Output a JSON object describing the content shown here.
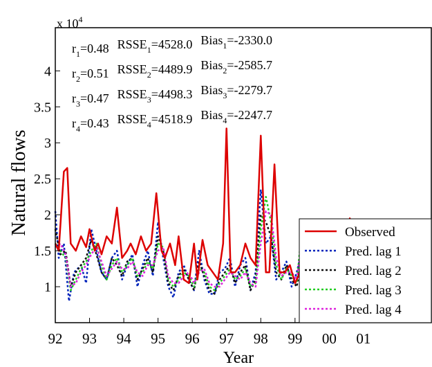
{
  "chart_data": {
    "type": "line",
    "xlabel": "Year",
    "ylabel": "Natural flows",
    "y_multiplier": {
      "base": "x 10",
      "exponent": "4"
    },
    "xlim": [
      1992,
      2003
    ],
    "ylim": [
      0.5,
      4.6
    ],
    "x_tick_values": [
      1992,
      1993,
      1994,
      1995,
      1996,
      1997,
      1998,
      1999,
      2000,
      2001
    ],
    "x_tick_labels": [
      "92",
      "93",
      "94",
      "95",
      "96",
      "97",
      "98",
      "99",
      "00",
      "01"
    ],
    "y_tick_values": [
      1,
      1.5,
      2,
      2.5,
      3,
      3.5,
      4
    ],
    "y_tick_labels": [
      "1",
      "1.5",
      "2",
      "2.5",
      "3",
      "3.5",
      "4"
    ],
    "grid": false,
    "legend_position": "bottom-right",
    "annotations": [
      {
        "r": "r",
        "rsub": "1",
        "rv": "=0.48",
        "s": "RSSE",
        "ssub": "1",
        "sv": "=4528.0",
        "b": "Bias",
        "bsub": "1",
        "bv": "=-2330.0"
      },
      {
        "r": "r",
        "rsub": "2",
        "rv": "=0.51",
        "s": "RSSE",
        "ssub": "2",
        "sv": "=4489.9",
        "b": "Bias",
        "bsub": "2",
        "bv": "=-2585.7"
      },
      {
        "r": "r",
        "rsub": "3",
        "rv": "=0.47",
        "s": "RSSE",
        "ssub": "3",
        "sv": "=4498.3",
        "b": "Bias",
        "bsub": "3",
        "bv": "=-2279.7"
      },
      {
        "r": "r",
        "rsub": "4",
        "rv": "=0.43",
        "s": "RSSE",
        "ssub": "4",
        "sv": "=4518.9",
        "b": "Bias",
        "bsub": "4",
        "bv": "=-2247.7"
      }
    ],
    "series": [
      {
        "name": "Observed",
        "color": "#dd0000",
        "dash": "solid",
        "x": [
          1992.0,
          1992.1,
          1992.25,
          1992.35,
          1992.45,
          1992.6,
          1992.75,
          1992.9,
          1993.0,
          1993.15,
          1993.25,
          1993.35,
          1993.5,
          1993.65,
          1993.8,
          1993.95,
          1994.1,
          1994.2,
          1994.35,
          1994.5,
          1994.65,
          1994.8,
          1994.95,
          1995.1,
          1995.2,
          1995.35,
          1995.5,
          1995.6,
          1995.75,
          1995.9,
          1996.05,
          1996.15,
          1996.3,
          1996.45,
          1996.6,
          1996.75,
          1996.9,
          1997.0,
          1997.12,
          1997.25,
          1997.4,
          1997.55,
          1997.7,
          1997.85,
          1998.0,
          1998.15,
          1998.25,
          1998.4,
          1998.55,
          1998.7,
          1998.85,
          1999.0,
          1999.1,
          1999.25,
          1999.4,
          1999.55,
          1999.7,
          1999.85,
          2000.0,
          2000.15,
          2000.3,
          2000.45,
          2000.6,
          2000.75,
          2000.85,
          2001.0,
          2001.1,
          2001.25,
          2001.4,
          2001.55,
          2001.7,
          2001.85
        ],
        "y": [
          1.6,
          1.5,
          2.6,
          2.65,
          1.6,
          1.5,
          1.7,
          1.55,
          1.8,
          1.5,
          1.6,
          1.45,
          1.7,
          1.6,
          2.1,
          1.4,
          1.5,
          1.6,
          1.45,
          1.7,
          1.5,
          1.6,
          2.3,
          1.5,
          1.4,
          1.6,
          1.3,
          1.7,
          1.1,
          1.05,
          1.6,
          1.1,
          1.65,
          1.3,
          1.2,
          1.1,
          1.6,
          3.2,
          1.2,
          1.2,
          1.3,
          1.6,
          1.4,
          1.3,
          3.1,
          1.2,
          1.2,
          2.7,
          1.2,
          1.2,
          1.3,
          1.05,
          1.15,
          1.4,
          1.1,
          1.0,
          1.2,
          1.1,
          1.4,
          1.8,
          1.2,
          1.1,
          1.95,
          1.4,
          1.2,
          1.3,
          1.1,
          1.3,
          1.1,
          1.0,
          1.1,
          1.2
        ]
      },
      {
        "name": "Pred. lag 1",
        "color": "#0022bb",
        "dash": "3,3",
        "x": [
          1992.0,
          1992.1,
          1992.25,
          1992.4,
          1992.55,
          1992.75,
          1992.9,
          1993.05,
          1993.2,
          1993.35,
          1993.5,
          1993.65,
          1993.8,
          1993.95,
          1994.1,
          1994.25,
          1994.4,
          1994.55,
          1994.7,
          1994.85,
          1995.0,
          1995.15,
          1995.3,
          1995.45,
          1995.6,
          1995.75,
          1995.9,
          1996.05,
          1996.2,
          1996.35,
          1996.5,
          1996.65,
          1996.8,
          1996.95,
          1997.1,
          1997.25,
          1997.4,
          1997.55,
          1997.7,
          1997.85,
          1998.0,
          1998.15,
          1998.3,
          1998.45,
          1998.6,
          1998.75,
          1998.9,
          1999.05,
          1999.2,
          1999.35,
          1999.5,
          1999.65,
          1999.8,
          1999.95,
          2000.1,
          2000.25,
          2000.4,
          2000.55,
          2000.7,
          2000.85,
          2001.0,
          2001.15,
          2001.3,
          2001.45,
          2001.6,
          2001.75,
          2001.85
        ],
        "y": [
          2.05,
          1.4,
          1.6,
          0.8,
          1.2,
          1.3,
          1.05,
          1.8,
          1.5,
          1.2,
          1.1,
          1.4,
          1.5,
          1.1,
          1.3,
          1.45,
          1.0,
          1.3,
          1.5,
          1.15,
          1.9,
          1.4,
          1.0,
          0.85,
          1.2,
          1.3,
          1.1,
          0.95,
          1.5,
          1.1,
          0.9,
          0.9,
          1.2,
          1.25,
          1.4,
          1.0,
          1.3,
          1.4,
          0.95,
          1.2,
          2.35,
          1.6,
          1.7,
          1.1,
          1.2,
          1.35,
          1.0,
          1.2,
          1.5,
          1.0,
          0.9,
          1.05,
          1.2,
          1.3,
          1.15,
          1.05,
          1.4,
          1.15,
          0.9,
          1.2,
          1.4,
          1.25,
          1.05,
          0.95,
          1.0,
          1.2,
          1.15
        ]
      },
      {
        "name": "Pred. lag 2",
        "color": "#111111",
        "dash": "3,3",
        "x": [
          1992.0,
          1992.15,
          1992.3,
          1992.45,
          1992.6,
          1992.75,
          1992.9,
          1993.05,
          1993.2,
          1993.35,
          1993.5,
          1993.65,
          1993.8,
          1993.95,
          1994.1,
          1994.25,
          1994.4,
          1994.55,
          1994.7,
          1994.85,
          1995.0,
          1995.15,
          1995.3,
          1995.45,
          1995.6,
          1995.75,
          1995.9,
          1996.05,
          1996.2,
          1996.35,
          1996.5,
          1996.65,
          1996.8,
          1996.95,
          1997.1,
          1997.25,
          1997.4,
          1997.55,
          1997.7,
          1997.85,
          1998.0,
          1998.15,
          1998.3,
          1998.45,
          1998.6,
          1998.75,
          1998.9,
          1999.05,
          1999.2,
          1999.35,
          1999.5,
          1999.65,
          1999.8,
          1999.95,
          2000.1,
          2000.25,
          2000.4,
          2000.55,
          2000.7,
          2000.85,
          2001.0,
          2001.15,
          2001.3,
          2001.45,
          2001.6,
          2001.75,
          2001.85
        ],
        "y": [
          1.8,
          1.45,
          1.5,
          1.0,
          1.2,
          1.3,
          1.4,
          1.65,
          1.45,
          1.2,
          1.1,
          1.4,
          1.3,
          1.15,
          1.35,
          1.4,
          1.1,
          1.25,
          1.4,
          1.2,
          1.7,
          1.5,
          1.05,
          0.95,
          1.15,
          1.25,
          1.1,
          0.95,
          1.35,
          1.15,
          0.95,
          0.9,
          1.1,
          1.2,
          1.3,
          1.05,
          1.2,
          1.3,
          0.95,
          1.1,
          2.0,
          1.9,
          1.7,
          1.2,
          1.1,
          1.3,
          1.1,
          1.0,
          1.4,
          1.1,
          0.85,
          0.85,
          1.1,
          1.25,
          1.1,
          1.0,
          1.35,
          1.1,
          0.9,
          1.15,
          1.35,
          1.25,
          1.1,
          0.95,
          1.05,
          1.2,
          1.15
        ]
      },
      {
        "name": "Pred. lag 3",
        "color": "#22cc22",
        "dash": "3,3",
        "x": [
          1992.0,
          1992.15,
          1992.3,
          1992.45,
          1992.6,
          1992.75,
          1992.9,
          1993.05,
          1993.2,
          1993.35,
          1993.5,
          1993.65,
          1993.8,
          1993.95,
          1994.1,
          1994.25,
          1994.4,
          1994.55,
          1994.7,
          1994.85,
          1995.0,
          1995.15,
          1995.3,
          1995.45,
          1995.6,
          1995.75,
          1995.9,
          1996.05,
          1996.2,
          1996.35,
          1996.5,
          1996.65,
          1996.8,
          1996.95,
          1997.1,
          1997.25,
          1997.4,
          1997.55,
          1997.7,
          1997.85,
          1998.0,
          1998.15,
          1998.3,
          1998.45,
          1998.6,
          1998.75,
          1998.9,
          1999.05,
          1999.2,
          1999.35,
          1999.5,
          1999.65,
          1999.8,
          1999.95,
          2000.1,
          2000.25,
          2000.4,
          2000.55,
          2000.7,
          2000.85,
          2001.0,
          2001.15,
          2001.3,
          2001.45,
          2001.6,
          2001.75,
          2001.85
        ],
        "y": [
          1.6,
          1.5,
          1.4,
          0.95,
          1.1,
          1.25,
          1.35,
          1.5,
          1.6,
          1.3,
          1.1,
          1.3,
          1.4,
          1.2,
          1.3,
          1.4,
          1.15,
          1.2,
          1.35,
          1.25,
          1.6,
          1.55,
          1.1,
          1.0,
          1.1,
          1.2,
          1.15,
          1.0,
          1.25,
          1.2,
          1.0,
          0.95,
          1.05,
          1.15,
          1.25,
          1.1,
          1.15,
          1.25,
          1.0,
          1.05,
          1.8,
          2.25,
          1.9,
          1.3,
          1.1,
          1.25,
          1.15,
          1.05,
          1.8,
          1.2,
          1.0,
          1.0,
          1.1,
          1.2,
          1.15,
          1.05,
          1.3,
          1.1,
          0.95,
          1.1,
          1.3,
          1.3,
          1.15,
          1.0,
          1.05,
          1.15,
          1.15
        ]
      },
      {
        "name": "Pred. lag 4",
        "color": "#dd22dd",
        "dash": "3,3",
        "x": [
          1992.0,
          1992.15,
          1992.3,
          1992.45,
          1992.6,
          1992.75,
          1992.9,
          1993.05,
          1993.2,
          1993.35,
          1993.5,
          1993.65,
          1993.8,
          1993.95,
          1994.1,
          1994.25,
          1994.4,
          1994.55,
          1994.7,
          1994.85,
          1995.0,
          1995.15,
          1995.3,
          1995.45,
          1995.6,
          1995.75,
          1995.9,
          1996.05,
          1996.2,
          1996.35,
          1996.5,
          1996.65,
          1996.8,
          1996.95,
          1997.1,
          1997.25,
          1997.4,
          1997.55,
          1997.7,
          1997.85,
          1998.0,
          1998.15,
          1998.3,
          1998.45,
          1998.6,
          1998.75,
          1998.9,
          1999.05,
          1999.2,
          1999.35,
          1999.5,
          1999.65,
          1999.8,
          1999.95,
          2000.1,
          2000.25,
          2000.4,
          2000.55,
          2000.7,
          2000.85,
          2001.0,
          2001.15,
          2001.3,
          2001.45,
          2001.6,
          2001.75,
          2001.85
        ],
        "y": [
          1.55,
          1.6,
          1.45,
          1.0,
          1.05,
          1.2,
          1.3,
          1.45,
          1.55,
          1.35,
          1.15,
          1.25,
          1.35,
          1.25,
          1.25,
          1.35,
          1.2,
          1.15,
          1.3,
          1.3,
          1.5,
          1.55,
          1.15,
          1.05,
          1.05,
          1.15,
          1.2,
          1.05,
          1.2,
          1.25,
          1.05,
          1.0,
          1.0,
          1.1,
          1.2,
          1.15,
          1.1,
          1.2,
          1.05,
          1.0,
          1.6,
          2.05,
          2.0,
          1.4,
          1.15,
          1.2,
          1.2,
          1.1,
          1.6,
          1.3,
          1.05,
          1.0,
          1.05,
          1.15,
          1.2,
          1.1,
          1.25,
          1.15,
          1.0,
          1.05,
          1.25,
          1.3,
          1.2,
          1.05,
          1.05,
          1.1,
          1.2
        ]
      }
    ]
  }
}
